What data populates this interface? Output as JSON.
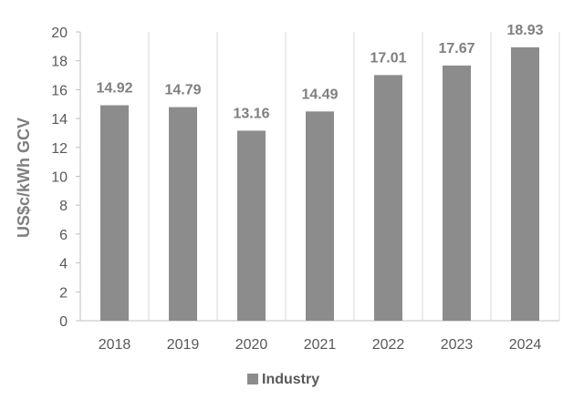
{
  "chart_data": {
    "type": "bar",
    "categories": [
      "2018",
      "2019",
      "2020",
      "2021",
      "2022",
      "2023",
      "2024"
    ],
    "series": [
      {
        "name": "Industry",
        "values": [
          14.92,
          14.79,
          13.16,
          14.49,
          17.01,
          17.67,
          18.93
        ],
        "color": "#8c8c8c"
      }
    ],
    "data_labels": [
      "14.92",
      "14.79",
      "13.16",
      "14.49",
      "17.01",
      "17.67",
      "18.93"
    ],
    "ylabel": "US$c/kWh GCV",
    "ylim": [
      0,
      20
    ],
    "yticks": [
      "0",
      "2",
      "4",
      "6",
      "8",
      "10",
      "12",
      "14",
      "16",
      "18",
      "20"
    ],
    "grid": true,
    "gridlines": "vertical",
    "legend_position": "bottom",
    "legend": [
      "Industry"
    ]
  }
}
